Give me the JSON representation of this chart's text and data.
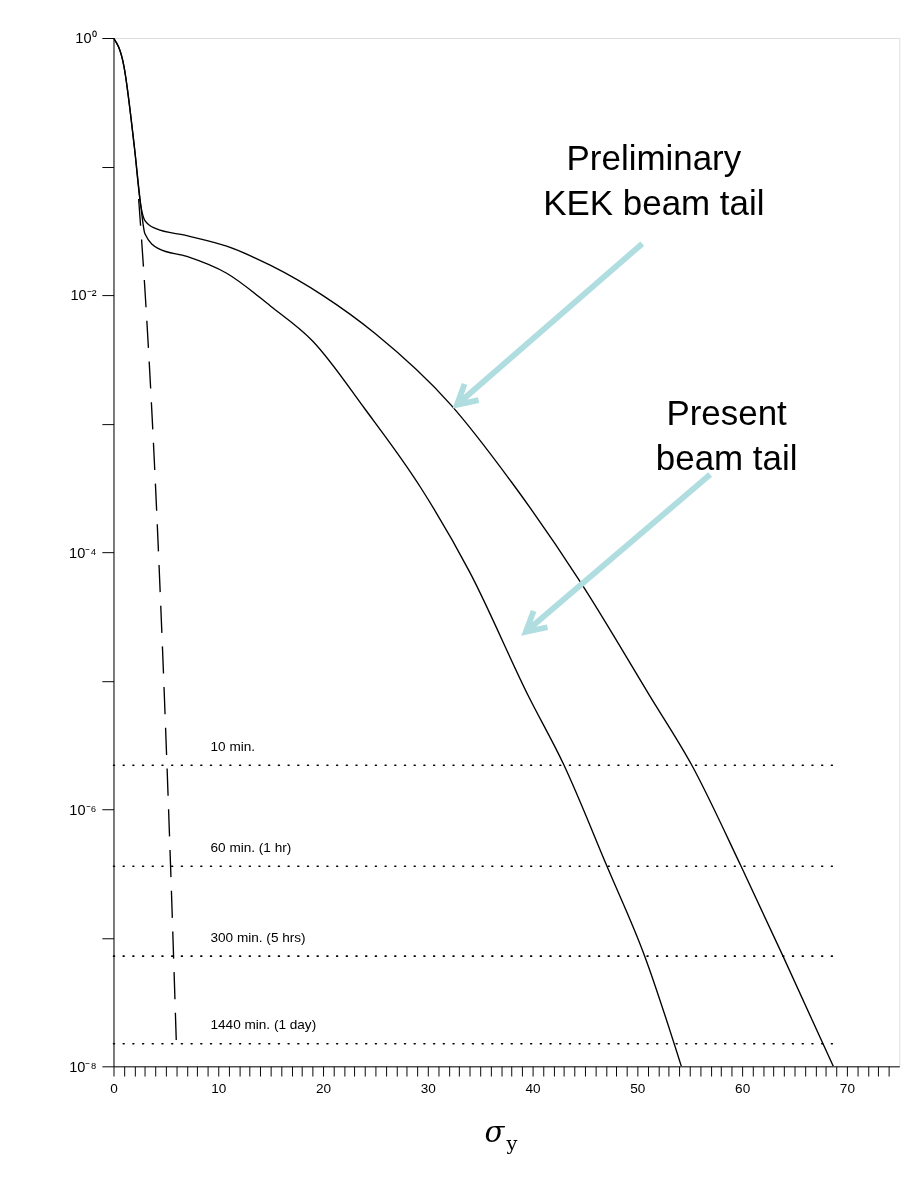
{
  "chart_data": {
    "type": "line",
    "xlabel": "σ$_{y}$",
    "log": "y",
    "grid": false,
    "legend": false,
    "xlim": [
      0,
      75
    ],
    "ylim": [
      1e-08,
      1
    ],
    "xticks": [
      0,
      10,
      20,
      30,
      40,
      50,
      60,
      70,
      {
        "value": 1,
        "label": null
      },
      {
        "value": 2,
        "label": null
      },
      {
        "value": 3,
        "label": null
      },
      {
        "value": 4,
        "label": null
      },
      {
        "value": 5,
        "label": null
      },
      {
        "value": 6,
        "label": null
      },
      {
        "value": 7,
        "label": null
      },
      {
        "value": 8,
        "label": null
      },
      {
        "value": 9,
        "label": null
      },
      {
        "value": 11,
        "label": null
      },
      {
        "value": 12,
        "label": null
      },
      {
        "value": 13,
        "label": null
      },
      {
        "value": 14,
        "label": null
      },
      {
        "value": 15,
        "label": null
      },
      {
        "value": 16,
        "label": null
      },
      {
        "value": 17,
        "label": null
      },
      {
        "value": 18,
        "label": null
      },
      {
        "value": 19,
        "label": null
      },
      {
        "value": 21,
        "label": null
      },
      {
        "value": 22,
        "label": null
      },
      {
        "value": 23,
        "label": null
      },
      {
        "value": 24,
        "label": null
      },
      {
        "value": 25,
        "label": null
      },
      {
        "value": 26,
        "label": null
      },
      {
        "value": 27,
        "label": null
      },
      {
        "value": 28,
        "label": null
      },
      {
        "value": 29,
        "label": null
      },
      {
        "value": 31,
        "label": null
      },
      {
        "value": 32,
        "label": null
      },
      {
        "value": 33,
        "label": null
      },
      {
        "value": 34,
        "label": null
      },
      {
        "value": 35,
        "label": null
      },
      {
        "value": 36,
        "label": null
      },
      {
        "value": 37,
        "label": null
      },
      {
        "value": 38,
        "label": null
      },
      {
        "value": 39,
        "label": null
      },
      {
        "value": 41,
        "label": null
      },
      {
        "value": 42,
        "label": null
      },
      {
        "value": 43,
        "label": null
      },
      {
        "value": 44,
        "label": null
      },
      {
        "value": 45,
        "label": null
      },
      {
        "value": 46,
        "label": null
      },
      {
        "value": 47,
        "label": null
      },
      {
        "value": 48,
        "label": null
      },
      {
        "value": 49,
        "label": null
      },
      {
        "value": 51,
        "label": null
      },
      {
        "value": 52,
        "label": null
      },
      {
        "value": 53,
        "label": null
      },
      {
        "value": 54,
        "label": null
      },
      {
        "value": 55,
        "label": null
      },
      {
        "value": 56,
        "label": null
      },
      {
        "value": 57,
        "label": null
      },
      {
        "value": 58,
        "label": null
      },
      {
        "value": 59,
        "label": null
      },
      {
        "value": 61,
        "label": null
      },
      {
        "value": 62,
        "label": null
      },
      {
        "value": 63,
        "label": null
      },
      {
        "value": 64,
        "label": null
      },
      {
        "value": 65,
        "label": null
      },
      {
        "value": 66,
        "label": null
      },
      {
        "value": 67,
        "label": null
      },
      {
        "value": 68,
        "label": null
      },
      {
        "value": 69,
        "label": null
      },
      {
        "value": 71,
        "label": null
      },
      {
        "value": 72,
        "label": null
      },
      {
        "value": 73,
        "label": null
      },
      {
        "value": 74,
        "label": null
      }
    ],
    "yticks": [
      {
        "value": 1,
        "label": "10⁰"
      },
      {
        "value": 0.1,
        "label": null
      },
      {
        "value": 0.01,
        "label": "10⁻²"
      },
      {
        "value": 0.001,
        "label": null
      },
      {
        "value": 0.0001,
        "label": "10⁻⁴"
      },
      {
        "value": 1e-05,
        "label": null
      },
      {
        "value": 1e-06,
        "label": "10⁻⁶"
      },
      {
        "value": 1e-07,
        "label": null
      },
      {
        "value": 1e-08,
        "label": "10⁻⁸"
      }
    ],
    "series": [
      {
        "color": "#000000",
        "line_style": "solid",
        "x": [
          0,
          1,
          2,
          2.6,
          3,
          4,
          7,
          10.8,
          15,
          20,
          25,
          32.2,
          38,
          44.6,
          51.2,
          55.2,
          59.9,
          63.9,
          68.7
        ],
        "values": [
          1,
          0.6,
          0.14,
          0.05,
          0.038,
          0.033,
          0.029,
          0.024,
          0.017,
          0.0099,
          0.005,
          0.0014,
          0.00035,
          5.8e-05,
          7.6e-06,
          2.2e-06,
          3.6e-07,
          7.2e-08,
          1e-08
        ]
      },
      {
        "color": "#000000",
        "line_style": "solid",
        "x": [
          0,
          1,
          2,
          2.6,
          3,
          4.3,
          7,
          10.8,
          15,
          19,
          24,
          29.3,
          34,
          39.6,
          43,
          47.1,
          50.7,
          54.2
        ],
        "values": [
          1,
          0.6,
          0.14,
          0.05,
          0.03,
          0.023,
          0.02,
          0.0148,
          0.0082,
          0.0044,
          0.0013,
          0.00032,
          7e-05,
          7.6e-06,
          2.2e-06,
          3.6e-07,
          7.2e-08,
          1e-08
        ]
      },
      {
        "color": "#000000",
        "line_style": "dashed",
        "x": [
          2.4,
          3,
          3.5,
          4,
          4.5,
          5,
          5.5,
          6
        ],
        "values": [
          0.056,
          0.011,
          0.0022,
          0.00034,
          4e-05,
          3.7e-06,
          2.7e-07,
          1.5e-08
        ]
      }
    ],
    "ref_lines": [
      {
        "axis": "y",
        "value": 2.2e-06,
        "label": "10 min.",
        "line_style": "dotted",
        "color": "#000000"
      },
      {
        "axis": "y",
        "value": 3.6e-07,
        "label": "60 min. (1 hr)",
        "line_style": "dotted",
        "color": "#000000"
      },
      {
        "axis": "y",
        "value": 7.2e-08,
        "label": "300 min. (5 hrs)",
        "line_style": "dotted",
        "color": "#000000"
      },
      {
        "axis": "y",
        "value": 1.5e-08,
        "label": "1440 min. (1 day)",
        "line_style": "dotted",
        "color": "#000000"
      }
    ],
    "annotations": [
      "Preliminary\nKEK beam tail",
      "Present\nbeam tail"
    ]
  }
}
